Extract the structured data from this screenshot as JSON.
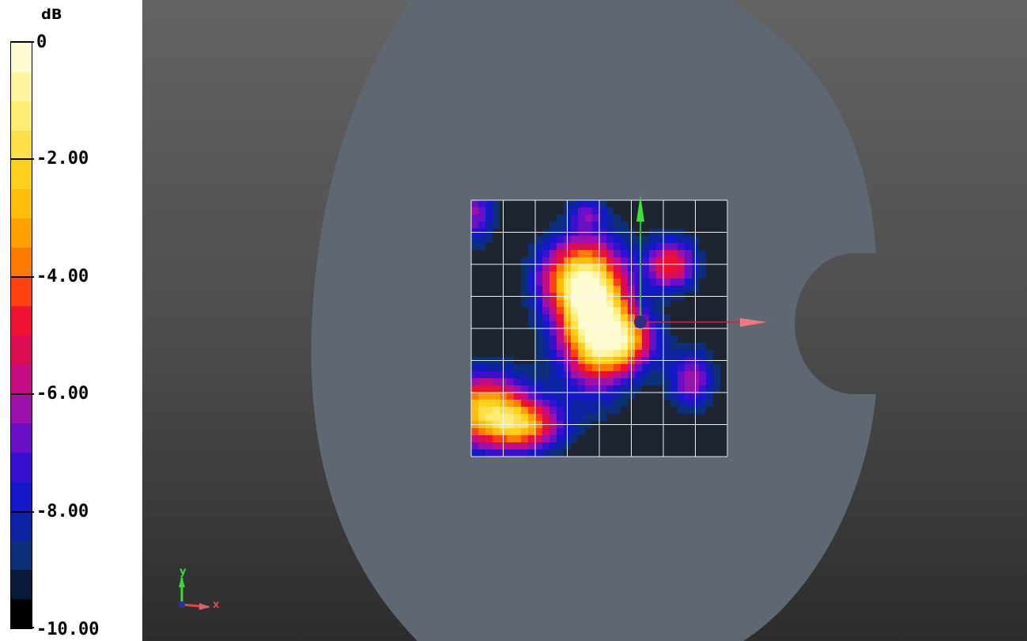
{
  "legend": {
    "unit": "dB",
    "ticks": [
      {
        "label": "0",
        "value": 0
      },
      {
        "label": "-2.00",
        "value": -2
      },
      {
        "label": "-4.00",
        "value": -4
      },
      {
        "label": "-6.00",
        "value": -6
      },
      {
        "label": "-8.00",
        "value": -8
      },
      {
        "label": "-10.00",
        "value": -10
      }
    ],
    "range": [
      -10,
      0
    ],
    "colors": [
      "#fffcd2",
      "#fff5a0",
      "#ffec74",
      "#ffe04a",
      "#ffd01e",
      "#ffbc08",
      "#ffa000",
      "#ff7c00",
      "#ff4010",
      "#f01030",
      "#dc0c50",
      "#c40c84",
      "#9c10ac",
      "#6a10c4",
      "#3a10d0",
      "#1418c8",
      "#0c24a4",
      "#0c2f78",
      "#0a1a3c",
      "#000000"
    ]
  },
  "scene": {
    "triad_labels": {
      "x": "x",
      "y": "y"
    },
    "colors": {
      "phantom": "#5f6872",
      "notch": "#3e3e3e",
      "grid": "#f2f2f2"
    }
  }
}
